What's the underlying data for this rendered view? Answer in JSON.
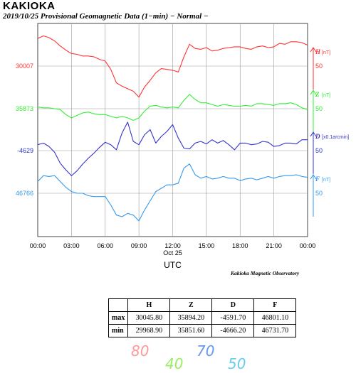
{
  "header": {
    "title": "KAKIOKA",
    "subtitle": "2019/10/25  Provisional Geomagnetic Data (1−min)  − Normal −"
  },
  "footer": {
    "observatory": "Kakioka Magnetic Observatory"
  },
  "chart_data": {
    "type": "line",
    "title": "2019/10/25  Provisional Geomagnetic Data (1-min)  - Normal -",
    "xlabel": "UTC",
    "x_date_label": "Oct 25",
    "x_ticks": [
      "00:00",
      "03:00",
      "06:00",
      "09:00",
      "12:00",
      "15:00",
      "18:00",
      "21:00",
      "00:00"
    ],
    "xlim_hours": [
      0,
      24
    ],
    "grid": true,
    "scale_bar_value": 50,
    "series": [
      {
        "name": "H",
        "unit": "[nT]",
        "color": "#ff3333",
        "left_label": "30007",
        "points": [
          [
            0,
            30040
          ],
          [
            0.5,
            30043
          ],
          [
            1,
            30041
          ],
          [
            1.5,
            30037
          ],
          [
            2,
            30031
          ],
          [
            2.5,
            30026
          ],
          [
            3,
            30022
          ],
          [
            3.5,
            30021
          ],
          [
            4,
            30019
          ],
          [
            4.5,
            30019
          ],
          [
            5,
            30018
          ],
          [
            5.5,
            30015
          ],
          [
            6,
            30013
          ],
          [
            6.5,
            30003
          ],
          [
            7,
            29987
          ],
          [
            7.5,
            29983
          ],
          [
            8,
            29980
          ],
          [
            8.5,
            29977
          ],
          [
            9,
            29970
          ],
          [
            9.5,
            29982
          ],
          [
            10,
            29990
          ],
          [
            10.5,
            29999
          ],
          [
            11,
            30004
          ],
          [
            11.5,
            30003
          ],
          [
            12,
            30002
          ],
          [
            12.5,
            30000
          ],
          [
            13,
            30018
          ],
          [
            13.5,
            30033
          ],
          [
            14,
            30028
          ],
          [
            14.5,
            30027
          ],
          [
            15,
            30029
          ],
          [
            15.5,
            30025
          ],
          [
            16,
            30026
          ],
          [
            16.5,
            30028
          ],
          [
            17,
            30029
          ],
          [
            17.5,
            30030
          ],
          [
            18,
            30030
          ],
          [
            18.5,
            30028
          ],
          [
            19,
            30027
          ],
          [
            19.5,
            30030
          ],
          [
            20,
            30031
          ],
          [
            20.5,
            30029
          ],
          [
            21,
            30030
          ],
          [
            21.5,
            30034
          ],
          [
            22,
            30033
          ],
          [
            22.5,
            30036
          ],
          [
            23,
            30036
          ],
          [
            23.5,
            30035
          ],
          [
            24,
            30032
          ]
        ]
      },
      {
        "name": "Z",
        "unit": "[nT]",
        "color": "#33ee33",
        "left_label": "35873",
        "points": [
          [
            0,
            35875
          ],
          [
            0.5,
            35874
          ],
          [
            1,
            35874
          ],
          [
            1.5,
            35873
          ],
          [
            2,
            35872
          ],
          [
            2.5,
            35866
          ],
          [
            3,
            35862
          ],
          [
            3.5,
            35865
          ],
          [
            4,
            35868
          ],
          [
            4.5,
            35869
          ],
          [
            5,
            35867
          ],
          [
            5.5,
            35866
          ],
          [
            6,
            35866
          ],
          [
            6.5,
            35864
          ],
          [
            7,
            35862
          ],
          [
            7.5,
            35864
          ],
          [
            8,
            35862
          ],
          [
            8.5,
            35859
          ],
          [
            9,
            35862
          ],
          [
            9.5,
            35870
          ],
          [
            10,
            35876
          ],
          [
            10.5,
            35877
          ],
          [
            11,
            35875
          ],
          [
            11.5,
            35874
          ],
          [
            12,
            35875
          ],
          [
            12.5,
            35874
          ],
          [
            13,
            35883
          ],
          [
            13.5,
            35890
          ],
          [
            14,
            35884
          ],
          [
            14.5,
            35880
          ],
          [
            15,
            35880
          ],
          [
            15.5,
            35878
          ],
          [
            16,
            35876
          ],
          [
            16.5,
            35878
          ],
          [
            17,
            35877
          ],
          [
            17.5,
            35876
          ],
          [
            18,
            35876
          ],
          [
            18.5,
            35877
          ],
          [
            19,
            35876
          ],
          [
            19.5,
            35879
          ],
          [
            20,
            35879
          ],
          [
            20.5,
            35878
          ],
          [
            21,
            35877
          ],
          [
            21.5,
            35879
          ],
          [
            22,
            35879
          ],
          [
            22.5,
            35880
          ],
          [
            23,
            35878
          ],
          [
            23.5,
            35874
          ],
          [
            24,
            35872
          ]
        ]
      },
      {
        "name": "D",
        "unit": "[x0.1arcmin]",
        "color": "#3333cc",
        "left_label": "-4629",
        "points": [
          [
            0,
            -4622
          ],
          [
            0.5,
            -4620
          ],
          [
            1,
            -4624
          ],
          [
            1.5,
            -4631
          ],
          [
            2,
            -4644
          ],
          [
            2.5,
            -4652
          ],
          [
            3,
            -4659
          ],
          [
            3.5,
            -4653
          ],
          [
            4,
            -4645
          ],
          [
            4.5,
            -4638
          ],
          [
            5,
            -4632
          ],
          [
            5.5,
            -4625
          ],
          [
            6,
            -4619
          ],
          [
            6.5,
            -4622
          ],
          [
            7,
            -4628
          ],
          [
            7.5,
            -4608
          ],
          [
            8,
            -4595
          ],
          [
            8.5,
            -4618
          ],
          [
            9,
            -4622
          ],
          [
            9.5,
            -4610
          ],
          [
            10,
            -4604
          ],
          [
            10.5,
            -4620
          ],
          [
            11,
            -4612
          ],
          [
            11.5,
            -4606
          ],
          [
            12,
            -4598
          ],
          [
            12.5,
            -4614
          ],
          [
            13,
            -4626
          ],
          [
            13.5,
            -4627
          ],
          [
            14,
            -4620
          ],
          [
            14.5,
            -4618
          ],
          [
            15,
            -4621
          ],
          [
            15.5,
            -4616
          ],
          [
            16,
            -4620
          ],
          [
            16.5,
            -4617
          ],
          [
            17,
            -4622
          ],
          [
            17.5,
            -4628
          ],
          [
            18,
            -4620
          ],
          [
            18.5,
            -4620
          ],
          [
            19,
            -4622
          ],
          [
            19.5,
            -4621
          ],
          [
            20,
            -4618
          ],
          [
            20.5,
            -4619
          ],
          [
            21,
            -4624
          ],
          [
            21.5,
            -4623
          ],
          [
            22,
            -4620
          ],
          [
            22.5,
            -4620
          ],
          [
            23,
            -4621
          ],
          [
            23.5,
            -4616
          ],
          [
            24,
            -4616
          ]
        ]
      },
      {
        "name": "F",
        "unit": "[nT]",
        "color": "#3399ee",
        "left_label": "46766",
        "points": [
          [
            0,
            46780
          ],
          [
            0.5,
            46787
          ],
          [
            1,
            46786
          ],
          [
            1.5,
            46787
          ],
          [
            2,
            46780
          ],
          [
            2.5,
            46773
          ],
          [
            3,
            46768
          ],
          [
            3.5,
            46766
          ],
          [
            4,
            46766
          ],
          [
            4.5,
            46763
          ],
          [
            5,
            46762
          ],
          [
            5.5,
            46762
          ],
          [
            6,
            46762
          ],
          [
            6.5,
            46752
          ],
          [
            7,
            46740
          ],
          [
            7.5,
            46738
          ],
          [
            8,
            46742
          ],
          [
            8.5,
            46740
          ],
          [
            9,
            46733
          ],
          [
            9.5,
            46746
          ],
          [
            10,
            46757
          ],
          [
            10.5,
            46768
          ],
          [
            11,
            46772
          ],
          [
            11.5,
            46776
          ],
          [
            12,
            46776
          ],
          [
            12.5,
            46778
          ],
          [
            13,
            46796
          ],
          [
            13.5,
            46801
          ],
          [
            14,
            46788
          ],
          [
            14.5,
            46784
          ],
          [
            15,
            46786
          ],
          [
            15.5,
            46783
          ],
          [
            16,
            46784
          ],
          [
            16.5,
            46786
          ],
          [
            17,
            46784
          ],
          [
            17.5,
            46784
          ],
          [
            18,
            46781
          ],
          [
            18.5,
            46783
          ],
          [
            19,
            46784
          ],
          [
            19.5,
            46782
          ],
          [
            20,
            46784
          ],
          [
            20.5,
            46786
          ],
          [
            21,
            46784
          ],
          [
            21.5,
            46786
          ],
          [
            22,
            46787
          ],
          [
            22.5,
            46787
          ],
          [
            23,
            46788
          ],
          [
            23.5,
            46786
          ],
          [
            24,
            46785
          ]
        ]
      }
    ],
    "stats_table": {
      "headers": [
        "",
        "H",
        "Z",
        "D",
        "F"
      ],
      "rows": [
        {
          "label": "max",
          "values": [
            "30045.80",
            "35894.20",
            "-4591.70",
            "46801.10"
          ]
        },
        {
          "label": "min",
          "values": [
            "29968.90",
            "35851.60",
            "-4666.20",
            "46731.70"
          ]
        }
      ]
    }
  },
  "handwritten": [
    {
      "text": "80",
      "color": "#ff9999"
    },
    {
      "text": "40",
      "color": "#99ee66"
    },
    {
      "text": "70",
      "color": "#6699ee"
    },
    {
      "text": "50",
      "color": "#66ccee"
    }
  ]
}
